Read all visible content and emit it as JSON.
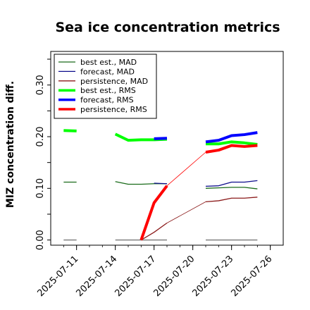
{
  "chart_data": {
    "type": "line",
    "title": "Sea ice concentration metrics",
    "ylabel": "MIZ concentration diff.",
    "xlabel": "",
    "ylim": [
      -0.01,
      0.365
    ],
    "xlim": [
      "2025-07-09",
      "2025-07-27"
    ],
    "yticks": [
      0.0,
      0.1,
      0.2,
      0.3
    ],
    "ytick_labels": [
      "0.00",
      "0.10",
      "0.20",
      "0.30"
    ],
    "xticks": [
      "2025-07-11",
      "2025-07-14",
      "2025-07-17",
      "2025-07-20",
      "2025-07-23",
      "2025-07-26"
    ],
    "highlight_tick": "2025-07-17",
    "highlight_color": "#228b22",
    "grid": false,
    "legend_position": "upper-left",
    "series": [
      {
        "name": "best est., MAD",
        "color": "#1a6b1a",
        "width": 1.3,
        "x": [
          "2025-07-10",
          "2025-07-11",
          "2025-07-14",
          "2025-07-15",
          "2025-07-16",
          "2025-07-17",
          "2025-07-18",
          "2025-07-21",
          "2025-07-22",
          "2025-07-23",
          "2025-07-24",
          "2025-07-25"
        ],
        "y": [
          0.112,
          0.112,
          0.113,
          0.108,
          0.108,
          0.109,
          0.109,
          0.1,
          0.101,
          0.102,
          0.102,
          0.099
        ]
      },
      {
        "name": "forecast, MAD",
        "color": "#0d0d8c",
        "width": 1.3,
        "x": [
          "2025-07-17",
          "2025-07-18",
          "2025-07-21",
          "2025-07-22",
          "2025-07-23",
          "2025-07-24",
          "2025-07-25"
        ],
        "y": [
          0.11,
          0.109,
          0.104,
          0.105,
          0.112,
          0.112,
          0.115
        ]
      },
      {
        "name": "persistence, MAD",
        "color": "#8b1a1a",
        "width": 1.3,
        "x": [
          "2025-07-16",
          "2025-07-17",
          "2025-07-18",
          "2025-07-21",
          "2025-07-22",
          "2025-07-23",
          "2025-07-24",
          "2025-07-25"
        ],
        "y": [
          0.0,
          0.015,
          0.033,
          0.074,
          0.076,
          0.081,
          0.081,
          0.083
        ]
      },
      {
        "name": "best est., RMS",
        "color": "#00ff00",
        "width": 4,
        "x": [
          "2025-07-10",
          "2025-07-11",
          "2025-07-14",
          "2025-07-15",
          "2025-07-16",
          "2025-07-17",
          "2025-07-18",
          "2025-07-21",
          "2025-07-22",
          "2025-07-23",
          "2025-07-24",
          "2025-07-25"
        ],
        "y": [
          0.212,
          0.211,
          0.205,
          0.193,
          0.194,
          0.194,
          0.195,
          0.186,
          0.186,
          0.19,
          0.188,
          0.185
        ]
      },
      {
        "name": "forecast, RMS",
        "color": "#0000ff",
        "width": 4,
        "x": [
          "2025-07-17",
          "2025-07-18",
          "2025-07-21",
          "2025-07-22",
          "2025-07-23",
          "2025-07-24",
          "2025-07-25"
        ],
        "y": [
          0.196,
          0.197,
          0.19,
          0.193,
          0.202,
          0.204,
          0.208
        ]
      },
      {
        "name": "persistence, RMS",
        "color": "#ff0000",
        "width": 4,
        "x": [
          "2025-07-16",
          "2025-07-17",
          "2025-07-18",
          "2025-07-21",
          "2025-07-22",
          "2025-07-23",
          "2025-07-24",
          "2025-07-25"
        ],
        "y": [
          0.0,
          0.072,
          0.105,
          0.17,
          0.174,
          0.183,
          0.181,
          0.183
        ]
      }
    ],
    "connectors": [
      {
        "color": "#ff0000",
        "width": 0.8,
        "from": [
          "2025-07-18",
          0.105
        ],
        "to": [
          "2025-07-21",
          0.17
        ]
      },
      {
        "color": "#8b1a1a",
        "width": 0.8,
        "from": [
          "2025-07-18",
          0.033
        ],
        "to": [
          "2025-07-21",
          0.074
        ]
      }
    ],
    "zero_segments": {
      "color": "#808080",
      "ranges": [
        [
          "2025-07-10",
          "2025-07-11"
        ],
        [
          "2025-07-14",
          "2025-07-18"
        ],
        [
          "2025-07-21",
          "2025-07-25"
        ]
      ]
    }
  }
}
